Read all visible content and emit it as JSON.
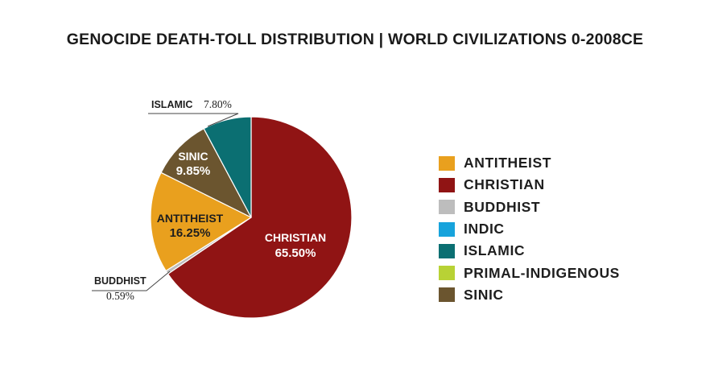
{
  "chart_data": {
    "type": "pie",
    "title": "GENOCIDE DEATH-TOLL DISTRIBUTION | WORLD CIVILIZATIONS 0-2008CE",
    "slices": [
      {
        "name": "CHRISTIAN",
        "value": 65.5,
        "display": "65.50%",
        "color": "#901414"
      },
      {
        "name": "BUDDHIST",
        "value": 0.59,
        "display": "0.59%",
        "color": "#bdbdbd"
      },
      {
        "name": "ANTITHEIST",
        "value": 16.25,
        "display": "16.25%",
        "color": "#e9a01e"
      },
      {
        "name": "SINIC",
        "value": 9.85,
        "display": "9.85%",
        "color": "#6b552f"
      },
      {
        "name": "ISLAMIC",
        "value": 7.8,
        "display": "7.80%",
        "color": "#0b6f72"
      }
    ],
    "legend": [
      {
        "label": "ANTITHEIST",
        "color": "#e9a01e"
      },
      {
        "label": "CHRISTIAN",
        "color": "#901414"
      },
      {
        "label": "BUDDHIST",
        "color": "#bdbdbd"
      },
      {
        "label": "INDIC",
        "color": "#17a3dc"
      },
      {
        "label": "ISLAMIC",
        "color": "#0b6f72"
      },
      {
        "label": "PRIMAL-INDIGENOUS",
        "color": "#b8d235"
      },
      {
        "label": "SINIC",
        "color": "#6b552f"
      }
    ]
  }
}
